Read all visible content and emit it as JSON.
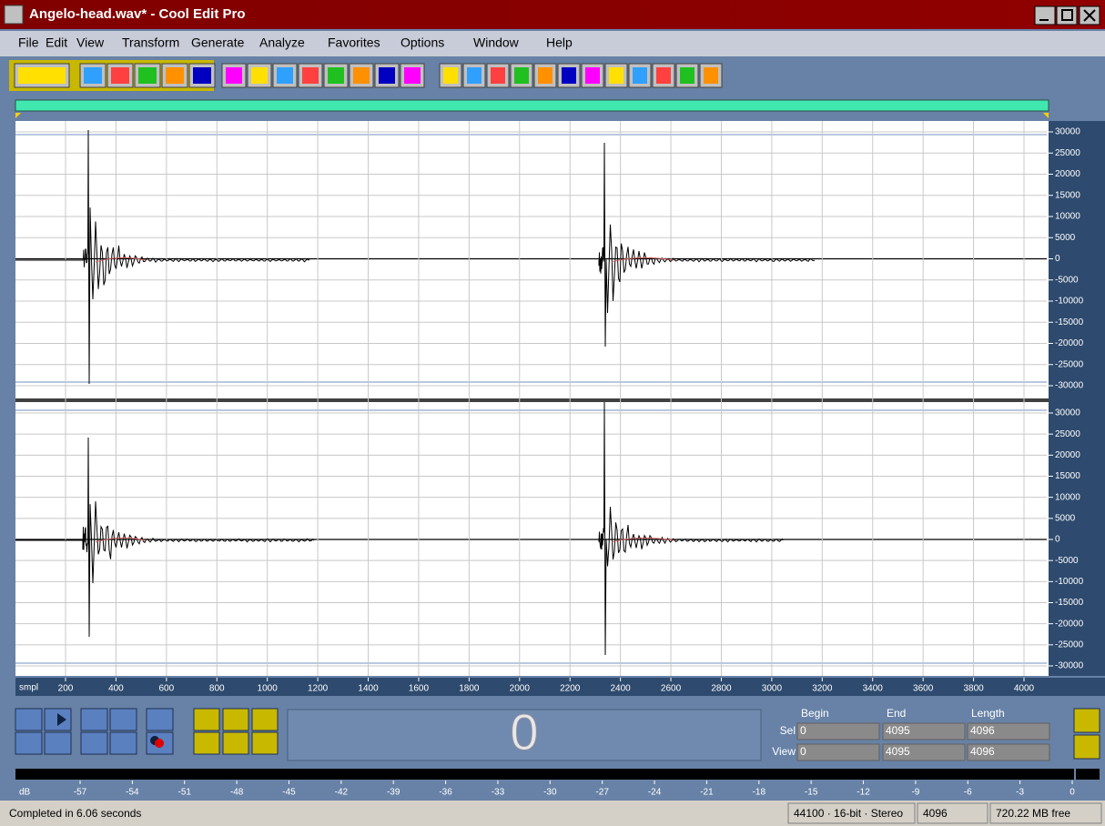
{
  "window": {
    "title": "Angelo-head.wav* - Cool Edit Pro"
  },
  "menu": [
    "File",
    "Edit",
    "View",
    "Transform",
    "Generate",
    "Analyze",
    "Favorites",
    "Options",
    "Window",
    "Help"
  ],
  "waveform": {
    "channel_1_ticks": [
      30000,
      25000,
      20000,
      15000,
      10000,
      5000,
      0,
      -5000,
      -10000,
      -15000,
      -20000,
      -25000,
      -30000
    ],
    "channel_2_ticks": [
      30000,
      25000,
      20000,
      15000,
      10000,
      5000,
      0,
      -5000,
      -10000,
      -15000,
      -20000,
      -25000,
      -30000
    ],
    "x_unit": "smpl",
    "xticks": [
      200,
      400,
      600,
      800,
      1000,
      1200,
      1400,
      1600,
      1800,
      2000,
      2200,
      2400,
      2600,
      2800,
      3000,
      3200,
      3400,
      3600,
      3800,
      4000
    ]
  },
  "transport": {
    "time": 0,
    "headers": [
      "Begin",
      "End",
      "Length"
    ],
    "rows": [
      {
        "label": "Sel",
        "values": [
          0,
          4095,
          4096
        ]
      },
      {
        "label": "View",
        "values": [
          0,
          4095,
          4096
        ]
      }
    ]
  },
  "meter": {
    "unit": "dB",
    "ticks": [
      -57,
      -54,
      -51,
      -48,
      -45,
      -42,
      -39,
      -36,
      -33,
      -30,
      -27,
      -24,
      -21,
      -18,
      -15,
      -12,
      -9,
      -6,
      -3,
      0
    ]
  },
  "status": {
    "message": "Completed in 6.06 seconds",
    "format": "44100 · 16-bit · Stereo",
    "samples": 4096,
    "free": "720.22 MB free"
  }
}
